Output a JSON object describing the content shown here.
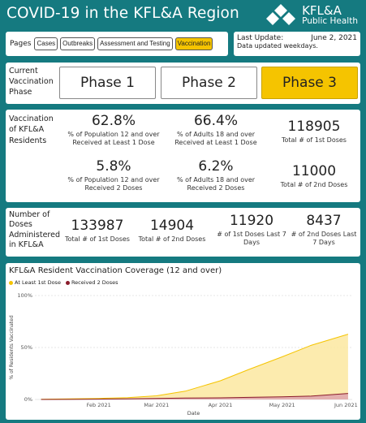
{
  "header": {
    "title": "COVID-19 in the KFL&A Region",
    "logo_line1": "KFL&A",
    "logo_line2": "Public Health"
  },
  "pages": {
    "label": "Pages",
    "buttons": [
      "Cases",
      "Outbreaks",
      "Assessment and Testing",
      "Vaccination"
    ],
    "active": "Vaccination"
  },
  "update": {
    "label": "Last Update:",
    "date": "June 2, 2021",
    "sub": "Data updated weekdays."
  },
  "phase": {
    "label": "Current Vaccination Phase",
    "buttons": [
      "Phase 1",
      "Phase 2",
      "Phase 3"
    ],
    "active": "Phase 3"
  },
  "vaccination": {
    "label": "Vaccination of KFL&A Residents",
    "pop12_first_pct": "62.8%",
    "pop12_first_cap": "% of Population 12 and over Received at Least 1 Dose",
    "adults_first_pct": "66.4%",
    "adults_first_cap": "% of Adults 18 and over Received at Least 1 Dose",
    "total_first": "118905",
    "total_first_cap": "Total # of 1st Doses",
    "pop12_second_pct": "5.8%",
    "pop12_second_cap": "% of Population 12 and over Received 2 Doses",
    "adults_second_pct": "6.2%",
    "adults_second_cap": "% of Adults 18 and over Received 2 Doses",
    "total_second": "11000",
    "total_second_cap": "Total # of 2nd Doses"
  },
  "doses": {
    "label": "Number of Doses Administered in KFL&A",
    "total_first": "133987",
    "total_first_cap": "Total # of 1st Doses",
    "total_second": "14904",
    "total_second_cap": "Total # of 2nd Doses",
    "first_7d": "11920",
    "first_7d_cap": "# of 1st Doses Last 7 Days",
    "second_7d": "8437",
    "second_7d_cap": "# of 2nd Doses Last 7 Days"
  },
  "chart_data": {
    "type": "area",
    "title": "KFL&A Resident Vaccination Coverage (12 and over)",
    "xlabel": "Date",
    "ylabel": "% of Residents Vaccinated",
    "x_ticks": [
      "Feb 2021",
      "Mar 2021",
      "Apr 2021",
      "May 2021",
      "Jun 2021"
    ],
    "y_ticks": [
      "0%",
      "50%",
      "100%"
    ],
    "ylim": [
      0,
      100
    ],
    "grid": true,
    "legend_position": "top-left",
    "x": [
      "2021-01-04",
      "2021-01-18",
      "2021-02-01",
      "2021-02-15",
      "2021-03-01",
      "2021-03-15",
      "2021-04-01",
      "2021-04-15",
      "2021-05-01",
      "2021-05-15",
      "2021-06-02"
    ],
    "series": [
      {
        "name": "At Least 1st Dose",
        "color": "#f5c400",
        "fill": "#fbe7a0",
        "values": [
          0.2,
          0.6,
          1.0,
          1.8,
          3.5,
          8.0,
          18.0,
          29.0,
          41.0,
          52.0,
          62.8
        ]
      },
      {
        "name": "Received 2 Doses",
        "color": "#8a1c2b",
        "fill": "#e0a9ae",
        "values": [
          0.0,
          0.1,
          0.3,
          0.6,
          1.0,
          1.3,
          1.6,
          2.0,
          2.6,
          3.2,
          5.8
        ]
      }
    ]
  }
}
